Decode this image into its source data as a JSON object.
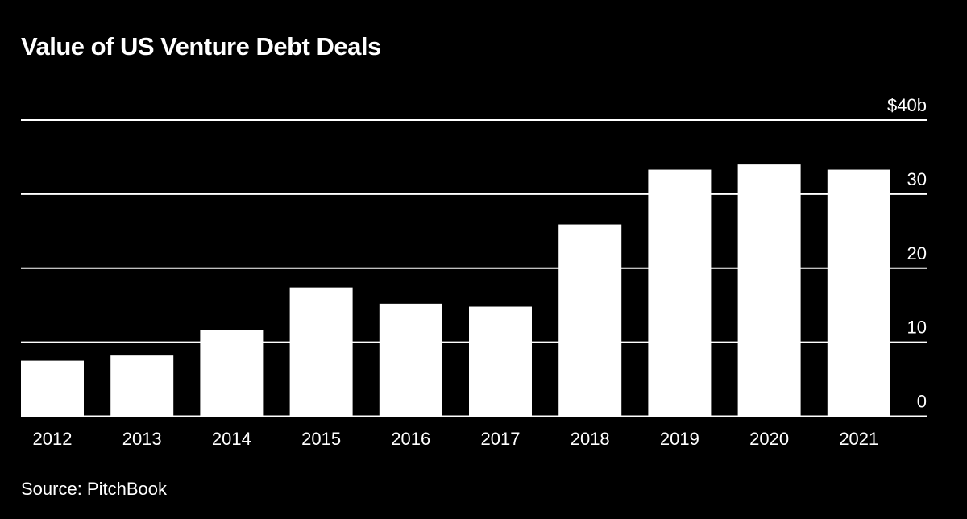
{
  "chart_data": {
    "type": "bar",
    "title": "Value of US Venture Debt Deals",
    "source": "Source: PitchBook",
    "categories": [
      "2012",
      "2013",
      "2014",
      "2015",
      "2016",
      "2017",
      "2018",
      "2019",
      "2020",
      "2021"
    ],
    "values": [
      7.5,
      8.2,
      11.6,
      17.4,
      15.2,
      14.8,
      25.9,
      33.3,
      34.0,
      33.3
    ],
    "unit": "$ billions",
    "ylim": [
      0,
      40
    ],
    "yticks": [
      0,
      10,
      20,
      30,
      40
    ],
    "ytick_labels": [
      "0",
      "10",
      "20",
      "30",
      "$40b"
    ],
    "xlabel": "",
    "ylabel": "",
    "grid": true,
    "colors": {
      "bar": "#ffffff",
      "grid": "#ffffff",
      "background": "#000000"
    }
  }
}
